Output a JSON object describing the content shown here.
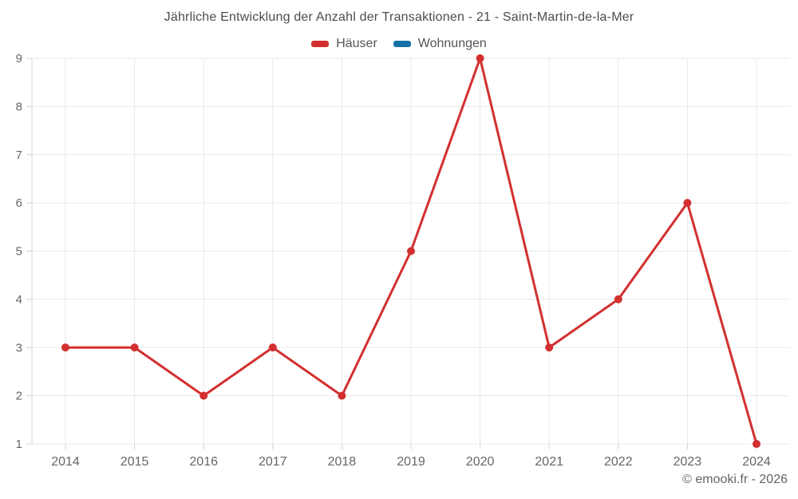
{
  "chart": {
    "footer": "© emooki.fr - 2026"
  },
  "chart_data": {
    "type": "line",
    "title": "Jährliche Entwicklung der Anzahl der Transaktionen - 21 - Saint-Martin-de-la-Mer",
    "categories": [
      "2014",
      "2015",
      "2016",
      "2017",
      "2018",
      "2019",
      "2020",
      "2021",
      "2022",
      "2023",
      "2024"
    ],
    "series": [
      {
        "name": "Häuser",
        "color": "#d32f2f",
        "values": [
          3,
          3,
          2,
          3,
          2,
          5,
          9,
          3,
          4,
          6,
          1
        ]
      },
      {
        "name": "Wohnungen",
        "color": "#1670a8",
        "values": []
      }
    ],
    "xlabel": "",
    "ylabel": "",
    "ylim": [
      1,
      9
    ],
    "yticks": [
      1,
      2,
      3,
      4,
      5,
      6,
      7,
      8,
      9
    ],
    "grid": true,
    "legend_position": "top",
    "colors": {
      "gridline": "#e8e8e8",
      "axis": "#d4d4d4",
      "axis_text": "#666666",
      "title_text": "#4c4c4c"
    }
  }
}
